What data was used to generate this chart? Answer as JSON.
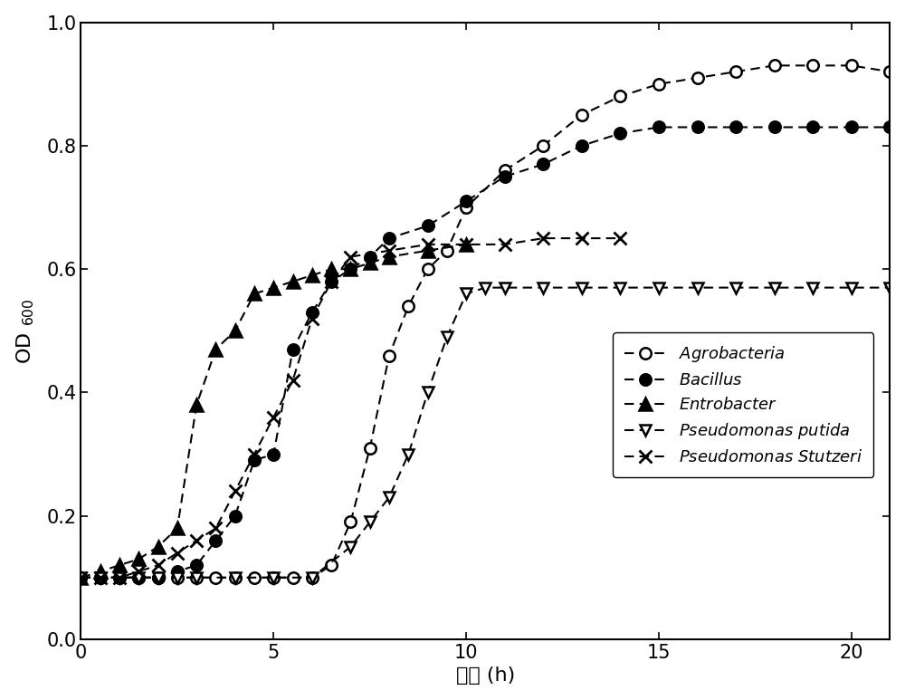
{
  "xlabel": "时间 (h)",
  "xlim": [
    0,
    21
  ],
  "ylim": [
    0.0,
    1.0
  ],
  "xticks": [
    0,
    5,
    10,
    15,
    20
  ],
  "yticks": [
    0.0,
    0.2,
    0.4,
    0.6,
    0.8,
    1.0
  ],
  "series": {
    "Agrobacteria": {
      "x": [
        0,
        0.5,
        1,
        1.5,
        2,
        2.5,
        3,
        3.5,
        4,
        4.5,
        5,
        5.5,
        6,
        6.5,
        7,
        7.5,
        8,
        8.5,
        9,
        9.5,
        10,
        11,
        12,
        13,
        14,
        15,
        16,
        17,
        18,
        19,
        20,
        21
      ],
      "y": [
        0.1,
        0.1,
        0.1,
        0.1,
        0.1,
        0.1,
        0.1,
        0.1,
        0.1,
        0.1,
        0.1,
        0.1,
        0.1,
        0.12,
        0.19,
        0.31,
        0.46,
        0.54,
        0.6,
        0.63,
        0.7,
        0.76,
        0.8,
        0.85,
        0.88,
        0.9,
        0.91,
        0.92,
        0.93,
        0.93,
        0.93,
        0.92
      ],
      "marker": "o",
      "filled": false
    },
    "Bacillus": {
      "x": [
        0,
        0.5,
        1,
        1.5,
        2,
        2.5,
        3,
        3.5,
        4,
        4.5,
        5,
        5.5,
        6,
        6.5,
        7,
        7.5,
        8,
        9,
        10,
        11,
        12,
        13,
        14,
        15,
        16,
        17,
        18,
        19,
        20,
        21
      ],
      "y": [
        0.1,
        0.1,
        0.1,
        0.1,
        0.1,
        0.11,
        0.12,
        0.16,
        0.2,
        0.29,
        0.3,
        0.47,
        0.53,
        0.58,
        0.6,
        0.62,
        0.65,
        0.67,
        0.71,
        0.75,
        0.77,
        0.8,
        0.82,
        0.83,
        0.83,
        0.83,
        0.83,
        0.83,
        0.83,
        0.83
      ],
      "marker": "o",
      "filled": true
    },
    "Entrobacter": {
      "x": [
        0,
        0.5,
        1,
        1.5,
        2,
        2.5,
        3,
        3.5,
        4,
        4.5,
        5,
        5.5,
        6,
        6.5,
        7,
        7.5,
        8,
        9,
        10
      ],
      "y": [
        0.1,
        0.11,
        0.12,
        0.13,
        0.15,
        0.18,
        0.38,
        0.47,
        0.5,
        0.56,
        0.57,
        0.58,
        0.59,
        0.6,
        0.6,
        0.61,
        0.62,
        0.63,
        0.64
      ],
      "marker": "^",
      "filled": true
    },
    "Pseudomonas_putida": {
      "x": [
        0,
        0.5,
        1,
        1.5,
        2,
        2.5,
        3,
        4,
        5,
        6,
        7,
        7.5,
        8,
        8.5,
        9,
        9.5,
        10,
        10.5,
        11,
        12,
        13,
        14,
        15,
        16,
        17,
        18,
        19,
        20,
        21
      ],
      "y": [
        0.1,
        0.1,
        0.1,
        0.1,
        0.1,
        0.1,
        0.1,
        0.1,
        0.1,
        0.1,
        0.15,
        0.19,
        0.23,
        0.3,
        0.4,
        0.49,
        0.56,
        0.57,
        0.57,
        0.57,
        0.57,
        0.57,
        0.57,
        0.57,
        0.57,
        0.57,
        0.57,
        0.57,
        0.57
      ],
      "marker": "v",
      "filled": false
    },
    "Pseudomonas_Stutzeri": {
      "x": [
        0,
        0.5,
        1,
        1.5,
        2,
        2.5,
        3,
        3.5,
        4,
        4.5,
        5,
        5.5,
        6,
        6.5,
        7,
        8,
        9,
        10,
        11,
        12,
        13,
        14
      ],
      "y": [
        0.1,
        0.1,
        0.1,
        0.11,
        0.12,
        0.14,
        0.16,
        0.18,
        0.24,
        0.3,
        0.36,
        0.42,
        0.52,
        0.58,
        0.62,
        0.63,
        0.64,
        0.64,
        0.64,
        0.65,
        0.65,
        0.65
      ],
      "marker": "x",
      "filled": false
    }
  },
  "legend_order": [
    "Agrobacteria",
    "Bacillus",
    "Entrobacter",
    "Pseudomonas_putida",
    "Pseudomonas_Stutzeri"
  ],
  "legend_italic_labels": [
    "Agrobacteria",
    "Bacillus",
    "Entrobacter",
    "Pseudomonas putida",
    "Pseudomonas Stutzeri"
  ],
  "marker_facecolors": {
    "Agrobacteria": "white",
    "Bacillus": "black",
    "Entrobacter": "black",
    "Pseudomonas_putida": "white",
    "Pseudomonas_Stutzeri": "black"
  },
  "markersizes": {
    "Agrobacteria": 9,
    "Bacillus": 9,
    "Entrobacter": 10,
    "Pseudomonas_putida": 9,
    "Pseudomonas_Stutzeri": 10
  }
}
